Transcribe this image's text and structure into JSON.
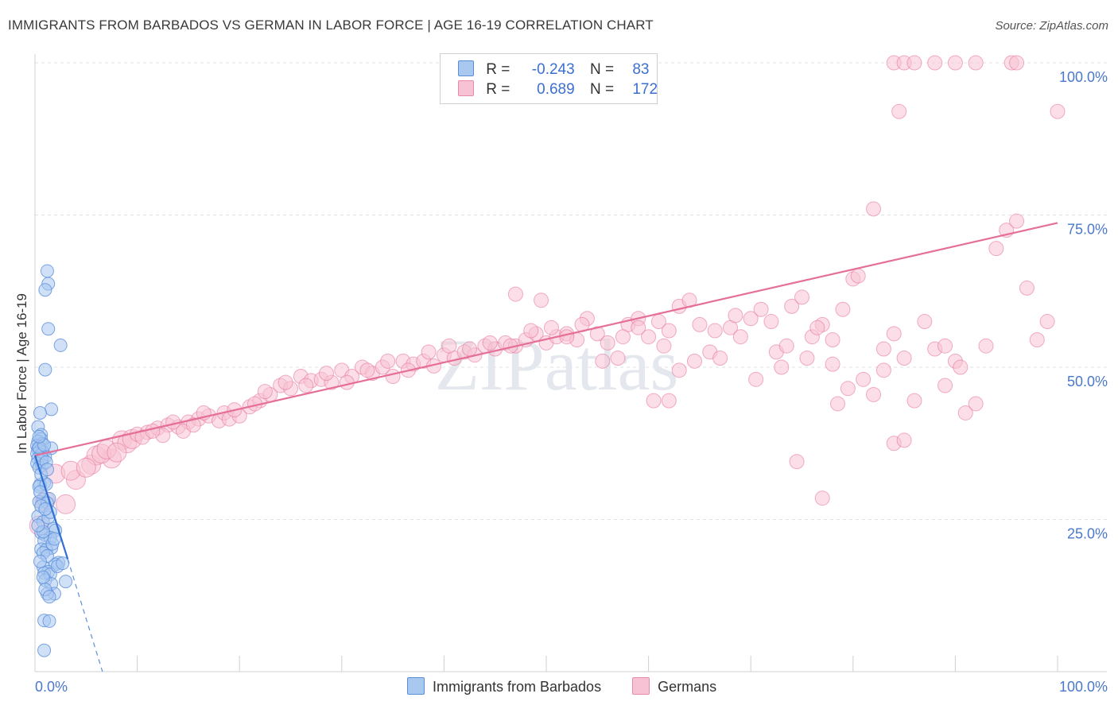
{
  "title": "IMMIGRANTS FROM BARBADOS VS GERMAN IN LABOR FORCE | AGE 16-19 CORRELATION CHART",
  "source": "Source: ZipAtlas.com",
  "watermark": "ZIPatlas",
  "legend": {
    "rows": [
      {
        "r_label": "R =",
        "r_value": "-0.243",
        "n_label": "N =",
        "n_value": "83",
        "color": "#a9c8f0",
        "border": "#5a8fd8"
      },
      {
        "r_label": "R =",
        "r_value": "0.689",
        "n_label": "N =",
        "n_value": "172",
        "color": "#f7c3d4",
        "border": "#e88aa8"
      }
    ]
  },
  "bottom_legend": [
    {
      "label": "Immigrants from Barbados",
      "color": "#a9c8f0",
      "border": "#5a8fd8"
    },
    {
      "label": "Germans",
      "color": "#f7c3d4",
      "border": "#e88aa8"
    }
  ],
  "chart_data": {
    "type": "scatter",
    "ylabel": "In Labor Force | Age 16-19",
    "xlim": [
      0,
      100
    ],
    "ylim": [
      0,
      100
    ],
    "x_tick_labels": [
      "0.0%",
      "100.0%"
    ],
    "y_tick_values": [
      25,
      50,
      75,
      100
    ],
    "y_tick_labels": [
      "25.0%",
      "50.0%",
      "75.0%",
      "100.0%"
    ],
    "grid": true,
    "series": [
      {
        "name": "Immigrants from Barbados",
        "color": "#5b8fdc",
        "fill": "#a9c8f0",
        "trend": {
          "x": [
            0,
            3.2
          ],
          "y": [
            35.5,
            18.5
          ],
          "dashed_to": [
            6.6,
            0
          ]
        },
        "points": [
          [
            1.2,
            65.8
          ],
          [
            1.3,
            63.7
          ],
          [
            1.0,
            62.7
          ],
          [
            1.3,
            56.3
          ],
          [
            2.5,
            53.6
          ],
          [
            1.0,
            49.6
          ],
          [
            1.6,
            43.1
          ],
          [
            0.5,
            42.5
          ],
          [
            0.3,
            40.2
          ],
          [
            0.6,
            38.9
          ],
          [
            0.6,
            38.2
          ],
          [
            0.3,
            37.8
          ],
          [
            0.7,
            37.4
          ],
          [
            0.2,
            37.1
          ],
          [
            1.6,
            36.7
          ],
          [
            0.3,
            36.5
          ],
          [
            0.5,
            36.3
          ],
          [
            0.8,
            36.0
          ],
          [
            0.2,
            35.8
          ],
          [
            0.6,
            35.6
          ],
          [
            1.0,
            35.3
          ],
          [
            0.3,
            35.0
          ],
          [
            0.6,
            34.6
          ],
          [
            0.2,
            34.2
          ],
          [
            0.7,
            33.9
          ],
          [
            0.4,
            33.5
          ],
          [
            0.9,
            31.0
          ],
          [
            0.5,
            30.7
          ],
          [
            1.4,
            28.4
          ],
          [
            0.8,
            28.3
          ],
          [
            0.4,
            27.9
          ],
          [
            1.2,
            27.7
          ],
          [
            0.3,
            25.5
          ],
          [
            0.8,
            24.6
          ],
          [
            1.8,
            23.5
          ],
          [
            2.0,
            23.2
          ],
          [
            0.6,
            22.8
          ],
          [
            1.0,
            22.4
          ],
          [
            1.5,
            22.0
          ],
          [
            0.9,
            21.5
          ],
          [
            1.6,
            20.3
          ],
          [
            0.6,
            20.1
          ],
          [
            1.1,
            20.0
          ],
          [
            0.8,
            19.5
          ],
          [
            2.3,
            17.9
          ],
          [
            2.0,
            17.6
          ],
          [
            0.8,
            17.2
          ],
          [
            1.3,
            16.4
          ],
          [
            0.9,
            16.2
          ],
          [
            1.5,
            16.0
          ],
          [
            1.0,
            15.0
          ],
          [
            3.0,
            14.8
          ],
          [
            1.6,
            14.4
          ],
          [
            1.9,
            12.8
          ],
          [
            1.2,
            12.8
          ],
          [
            0.9,
            8.4
          ],
          [
            1.4,
            8.3
          ],
          [
            0.9,
            3.5
          ],
          [
            0.4,
            30.4
          ],
          [
            1.1,
            30.8
          ],
          [
            0.6,
            27.2
          ],
          [
            1.3,
            25.3
          ],
          [
            0.8,
            23.0
          ],
          [
            1.7,
            21.0
          ],
          [
            1.2,
            19.0
          ],
          [
            0.5,
            18.1
          ],
          [
            2.2,
            17.3
          ],
          [
            1.0,
            13.5
          ],
          [
            0.7,
            35.0
          ],
          [
            0.4,
            36.8
          ],
          [
            1.1,
            34.4
          ],
          [
            0.9,
            37.2
          ],
          [
            0.5,
            29.5
          ],
          [
            1.5,
            26.2
          ],
          [
            0.3,
            24.0
          ],
          [
            1.9,
            21.8
          ],
          [
            0.8,
            15.5
          ],
          [
            1.4,
            12.3
          ],
          [
            0.6,
            32.4
          ],
          [
            1.2,
            33.2
          ],
          [
            0.4,
            38.6
          ],
          [
            1.0,
            26.7
          ],
          [
            2.7,
            17.8
          ]
        ]
      },
      {
        "name": "Germans",
        "color": "#e56f97",
        "fill": "#f7c3d4",
        "trend": {
          "x": [
            0,
            100
          ],
          "y": [
            35.5,
            73.7
          ]
        },
        "points": [
          [
            0.4,
            24.0
          ],
          [
            1.0,
            28.0
          ],
          [
            3.0,
            27.5
          ],
          [
            4.0,
            31.5
          ],
          [
            2.0,
            32.5
          ],
          [
            5.5,
            34.0
          ],
          [
            7.5,
            35.0
          ],
          [
            6.0,
            35.5
          ],
          [
            6.5,
            35.8
          ],
          [
            7.0,
            36.5
          ],
          [
            8.5,
            38.0
          ],
          [
            9.0,
            37.5
          ],
          [
            9.5,
            38.2
          ],
          [
            10.0,
            39.0
          ],
          [
            11.0,
            39.3
          ],
          [
            12.0,
            40.0
          ],
          [
            13.0,
            40.5
          ],
          [
            12.5,
            38.8
          ],
          [
            14.0,
            40.2
          ],
          [
            15.0,
            41.0
          ],
          [
            14.5,
            39.5
          ],
          [
            16.0,
            41.5
          ],
          [
            17.0,
            42.0
          ],
          [
            18.0,
            41.2
          ],
          [
            18.5,
            42.5
          ],
          [
            19.0,
            41.5
          ],
          [
            20.0,
            42.0
          ],
          [
            21.0,
            43.5
          ],
          [
            22.0,
            44.5
          ],
          [
            23.0,
            45.5
          ],
          [
            24.0,
            47.0
          ],
          [
            25.0,
            46.5
          ],
          [
            26.0,
            48.5
          ],
          [
            27.0,
            47.8
          ],
          [
            28.0,
            48.0
          ],
          [
            29.0,
            47.5
          ],
          [
            30.0,
            49.5
          ],
          [
            31.0,
            48.5
          ],
          [
            32.0,
            50.0
          ],
          [
            33.0,
            49.0
          ],
          [
            34.0,
            50.0
          ],
          [
            35.0,
            48.5
          ],
          [
            36.0,
            51.0
          ],
          [
            37.0,
            50.5
          ],
          [
            38.0,
            51.0
          ],
          [
            39.0,
            50.2
          ],
          [
            40.0,
            52.0
          ],
          [
            41.0,
            51.5
          ],
          [
            42.0,
            52.5
          ],
          [
            43.0,
            52.0
          ],
          [
            44.0,
            53.5
          ],
          [
            45.0,
            53.0
          ],
          [
            46.0,
            54.0
          ],
          [
            47.0,
            53.5
          ],
          [
            48.0,
            54.5
          ],
          [
            49.0,
            55.5
          ],
          [
            50.0,
            54.0
          ],
          [
            51.0,
            55.0
          ],
          [
            52.0,
            55.5
          ],
          [
            53.0,
            54.5
          ],
          [
            54.0,
            58.0
          ],
          [
            55.0,
            55.5
          ],
          [
            56.0,
            54.0
          ],
          [
            57.0,
            51.5
          ],
          [
            58.0,
            57.0
          ],
          [
            59.0,
            58.0
          ],
          [
            60.0,
            55.0
          ],
          [
            61.0,
            57.5
          ],
          [
            62.0,
            56.0
          ],
          [
            63.0,
            60.0
          ],
          [
            64.0,
            61.0
          ],
          [
            65.0,
            57.0
          ],
          [
            66.0,
            52.5
          ],
          [
            67.0,
            51.5
          ],
          [
            68.0,
            56.5
          ],
          [
            69.0,
            55.0
          ],
          [
            70.0,
            58.0
          ],
          [
            71.0,
            59.5
          ],
          [
            72.0,
            57.5
          ],
          [
            73.0,
            50.0
          ],
          [
            74.0,
            60.0
          ],
          [
            75.0,
            61.5
          ],
          [
            76.0,
            55.0
          ],
          [
            77.0,
            57.0
          ],
          [
            78.0,
            54.5
          ],
          [
            79.0,
            59.5
          ],
          [
            80.0,
            64.5
          ],
          [
            81.0,
            48.0
          ],
          [
            82.0,
            45.5
          ],
          [
            83.0,
            53.0
          ],
          [
            84.0,
            55.5
          ],
          [
            85.0,
            51.5
          ],
          [
            86.0,
            44.5
          ],
          [
            87.0,
            57.5
          ],
          [
            88.0,
            53.0
          ],
          [
            89.0,
            53.5
          ],
          [
            90.0,
            51.0
          ],
          [
            91.0,
            42.5
          ],
          [
            92.0,
            44.0
          ],
          [
            93.0,
            53.5
          ],
          [
            94.0,
            69.5
          ],
          [
            95.0,
            72.5
          ],
          [
            96.0,
            74.0
          ],
          [
            97.0,
            63.0
          ],
          [
            98.0,
            54.5
          ],
          [
            99.0,
            57.5
          ],
          [
            84.5,
            92.0
          ],
          [
            84.0,
            100.0
          ],
          [
            85.0,
            100.0
          ],
          [
            86.0,
            100.0
          ],
          [
            88.0,
            100.0
          ],
          [
            90.0,
            100.0
          ],
          [
            92.0,
            100.0
          ],
          [
            95.5,
            100.0
          ],
          [
            96.0,
            100.0
          ],
          [
            100.0,
            92.0
          ],
          [
            82.0,
            76.0
          ],
          [
            80.5,
            65.0
          ],
          [
            78.0,
            50.5
          ],
          [
            74.5,
            34.5
          ],
          [
            63.0,
            49.5
          ],
          [
            62.0,
            44.5
          ],
          [
            60.5,
            44.5
          ],
          [
            57.5,
            55.0
          ],
          [
            55.5,
            51.0
          ],
          [
            47.0,
            62.0
          ],
          [
            49.5,
            61.0
          ],
          [
            50.5,
            56.5
          ],
          [
            52.0,
            55.0
          ],
          [
            53.5,
            57.0
          ],
          [
            83.0,
            49.5
          ],
          [
            84.0,
            37.5
          ],
          [
            85.0,
            38.0
          ],
          [
            77.0,
            28.5
          ],
          [
            89.0,
            47.0
          ],
          [
            90.5,
            50.0
          ],
          [
            59.0,
            56.5
          ],
          [
            61.5,
            53.5
          ],
          [
            64.5,
            51.0
          ],
          [
            66.5,
            56.0
          ],
          [
            68.5,
            58.5
          ],
          [
            70.5,
            48.0
          ],
          [
            72.5,
            52.5
          ],
          [
            73.5,
            53.5
          ],
          [
            75.5,
            51.5
          ],
          [
            76.5,
            56.5
          ],
          [
            78.5,
            44.0
          ],
          [
            79.5,
            46.5
          ],
          [
            3.5,
            33.0
          ],
          [
            5.0,
            33.5
          ],
          [
            8.0,
            36.0
          ],
          [
            10.5,
            38.5
          ],
          [
            11.5,
            39.5
          ],
          [
            13.5,
            41.0
          ],
          [
            15.5,
            40.5
          ],
          [
            16.5,
            42.5
          ],
          [
            19.5,
            43.0
          ],
          [
            21.5,
            44.0
          ],
          [
            22.5,
            46.0
          ],
          [
            24.5,
            47.5
          ],
          [
            26.5,
            47.0
          ],
          [
            28.5,
            49.0
          ],
          [
            30.5,
            47.5
          ],
          [
            32.5,
            49.5
          ],
          [
            34.5,
            51.0
          ],
          [
            36.5,
            49.5
          ],
          [
            38.5,
            52.5
          ],
          [
            40.5,
            53.5
          ],
          [
            42.5,
            53.0
          ],
          [
            44.5,
            54.0
          ],
          [
            46.5,
            53.5
          ],
          [
            48.5,
            56.0
          ]
        ]
      }
    ]
  }
}
